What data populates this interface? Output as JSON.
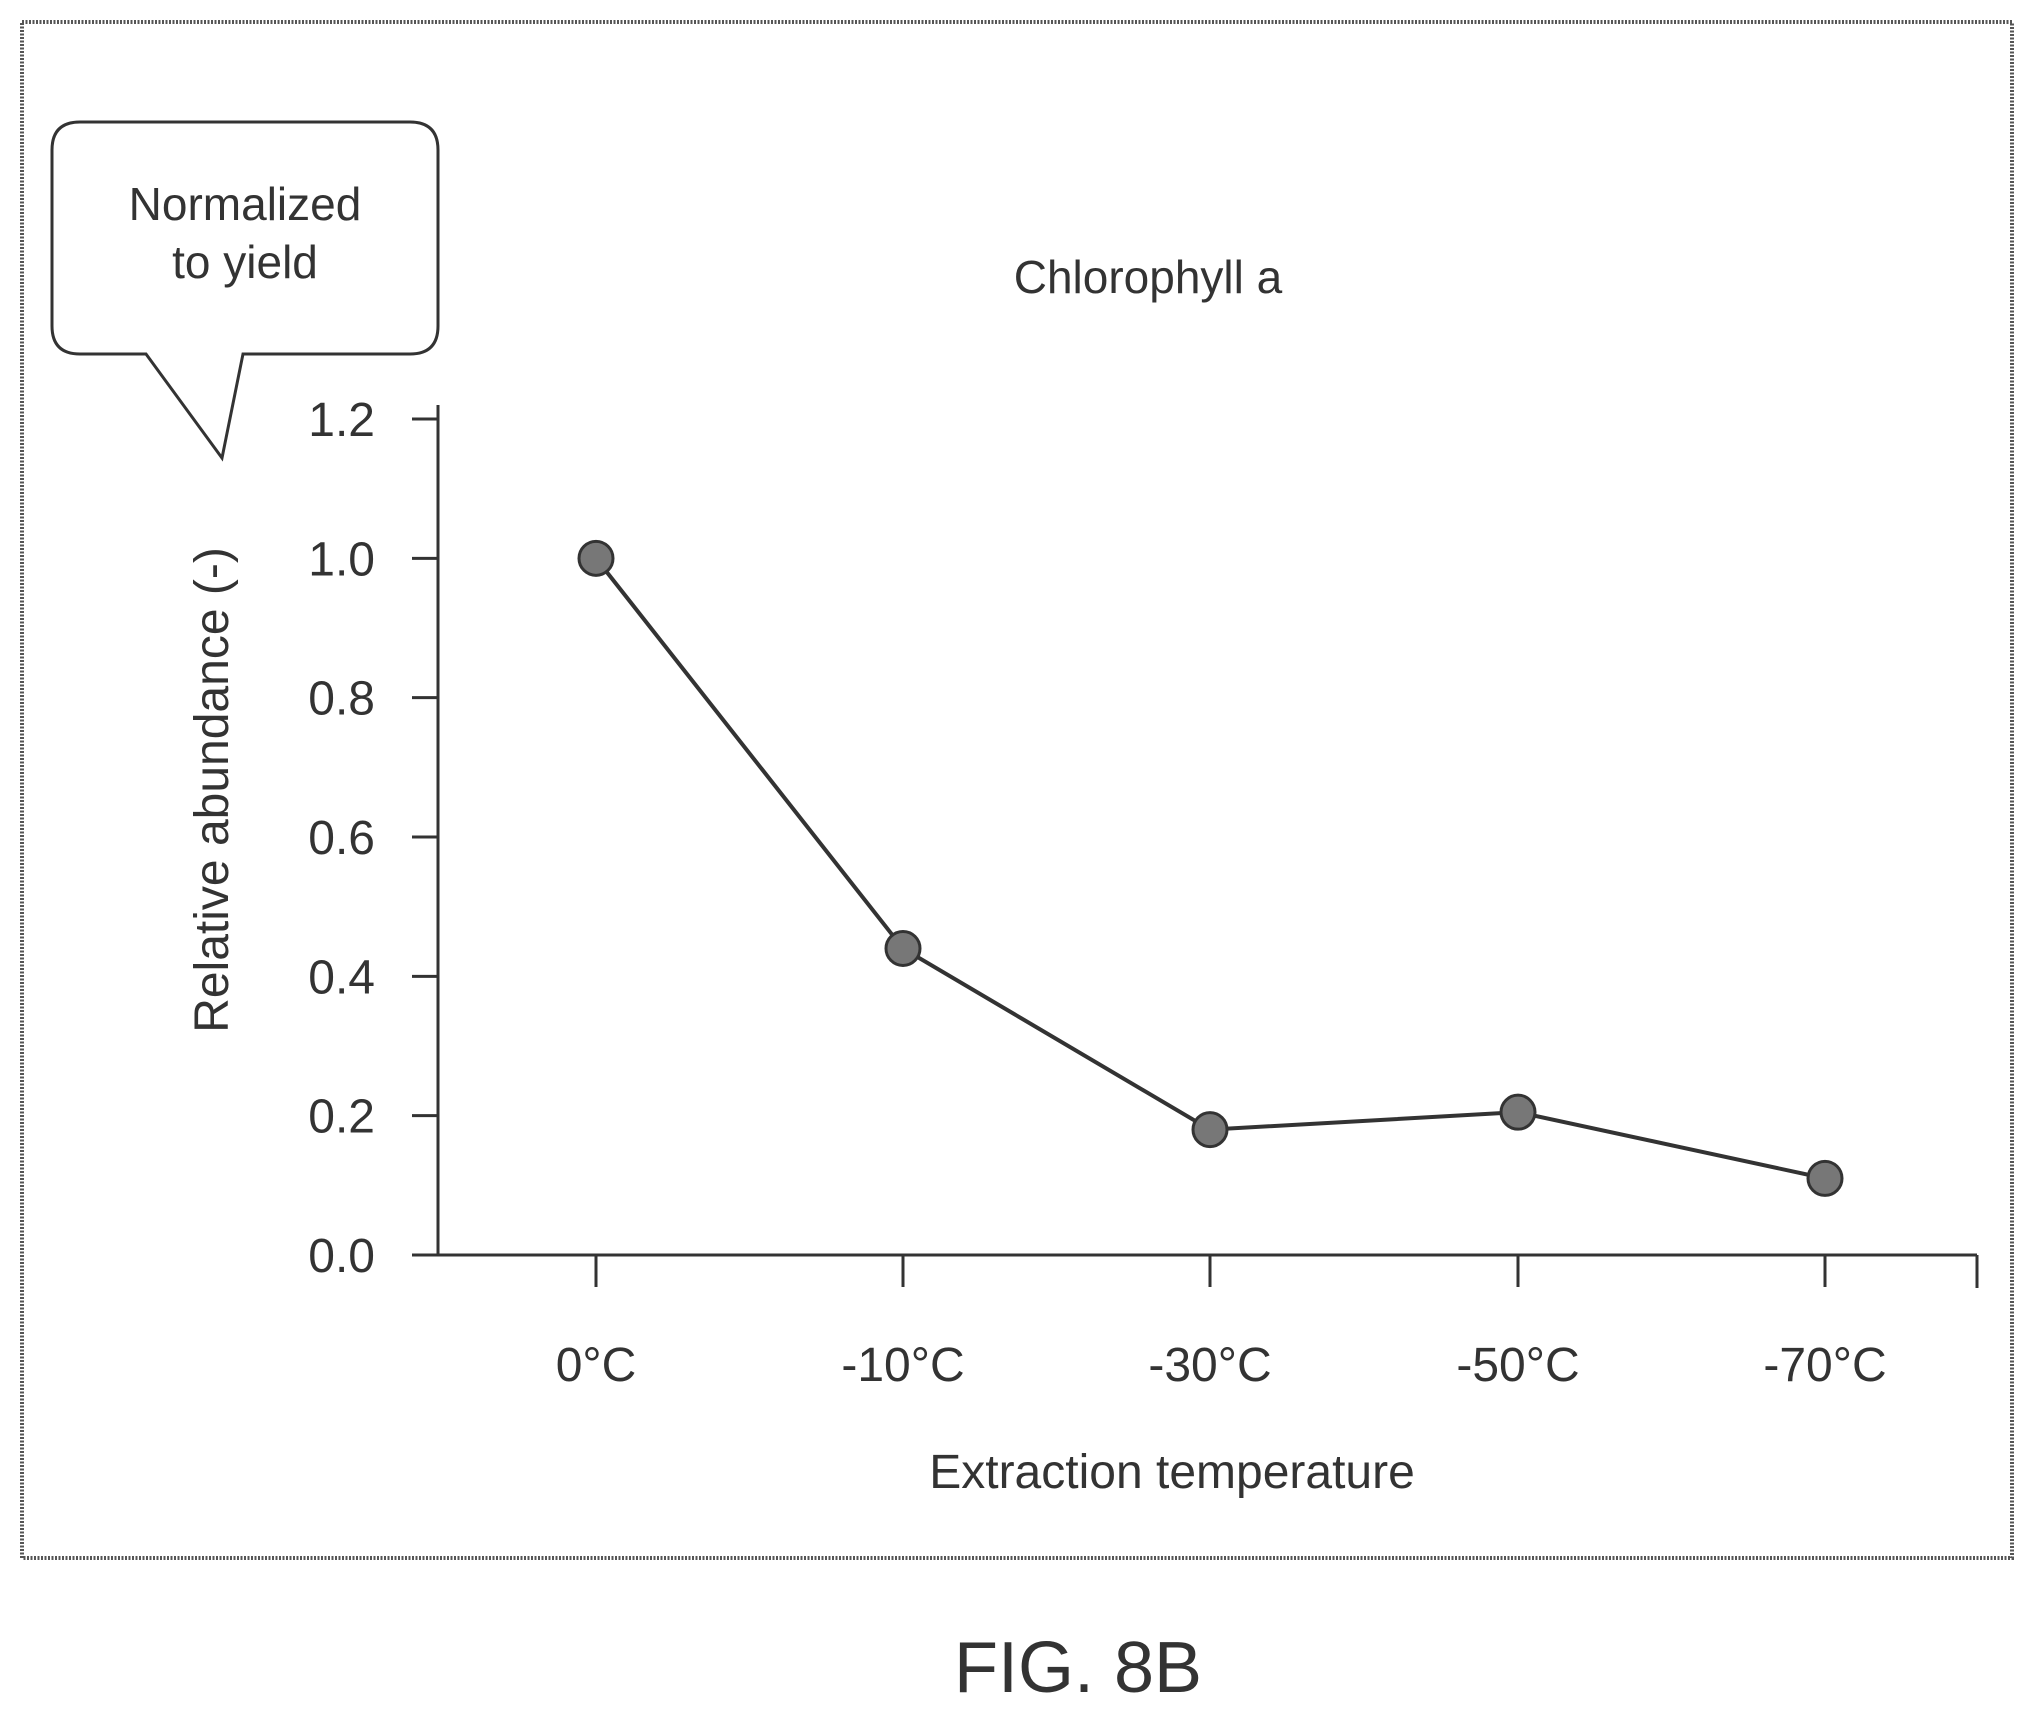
{
  "callout": {
    "line1": "Normalized",
    "line2": "to yield"
  },
  "caption": "FIG. 8B",
  "chart_data": {
    "type": "line",
    "title": "Chlorophyll a",
    "xlabel": "Extraction temperature",
    "ylabel": "Relative abundance (-)",
    "categories": [
      "0°C",
      "-10°C",
      "-30°C",
      "-50°C",
      "-70°C"
    ],
    "series": [
      {
        "values": [
          1.0,
          0.44,
          0.18,
          0.205,
          0.11
        ]
      }
    ],
    "ylim": [
      0.0,
      1.2
    ],
    "yticks": [
      "0.0",
      "0.2",
      "0.4",
      "0.6",
      "0.8",
      "1.0",
      "1.2"
    ],
    "ytick_values": [
      0.0,
      0.2,
      0.4,
      0.6,
      0.8,
      1.0,
      1.2
    ],
    "grid": false,
    "legend": "none",
    "colors": {
      "line": "#333333",
      "marker": "#777777"
    }
  }
}
